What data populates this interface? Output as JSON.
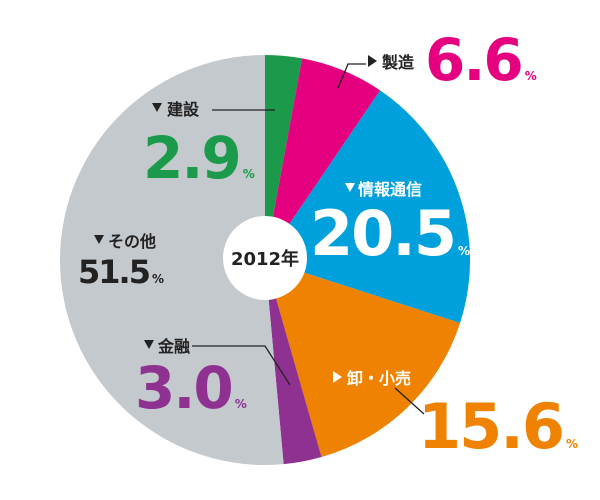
{
  "chart_data": {
    "type": "pie",
    "center_label": "2012年",
    "categories": [
      "建設",
      "製造",
      "情報通信",
      "卸・小売",
      "金融",
      "その他"
    ],
    "values": [
      2.9,
      6.6,
      20.5,
      15.6,
      3.0,
      51.5
    ],
    "value_labels": [
      "2.9",
      "6.6",
      "20.5",
      "15.6",
      "3.0",
      "51.5"
    ],
    "unit": "%",
    "colors": [
      "#1a9a4a",
      "#e4007f",
      "#00a0dc",
      "#ef8200",
      "#8e3191",
      "#c4c9cd"
    ]
  }
}
